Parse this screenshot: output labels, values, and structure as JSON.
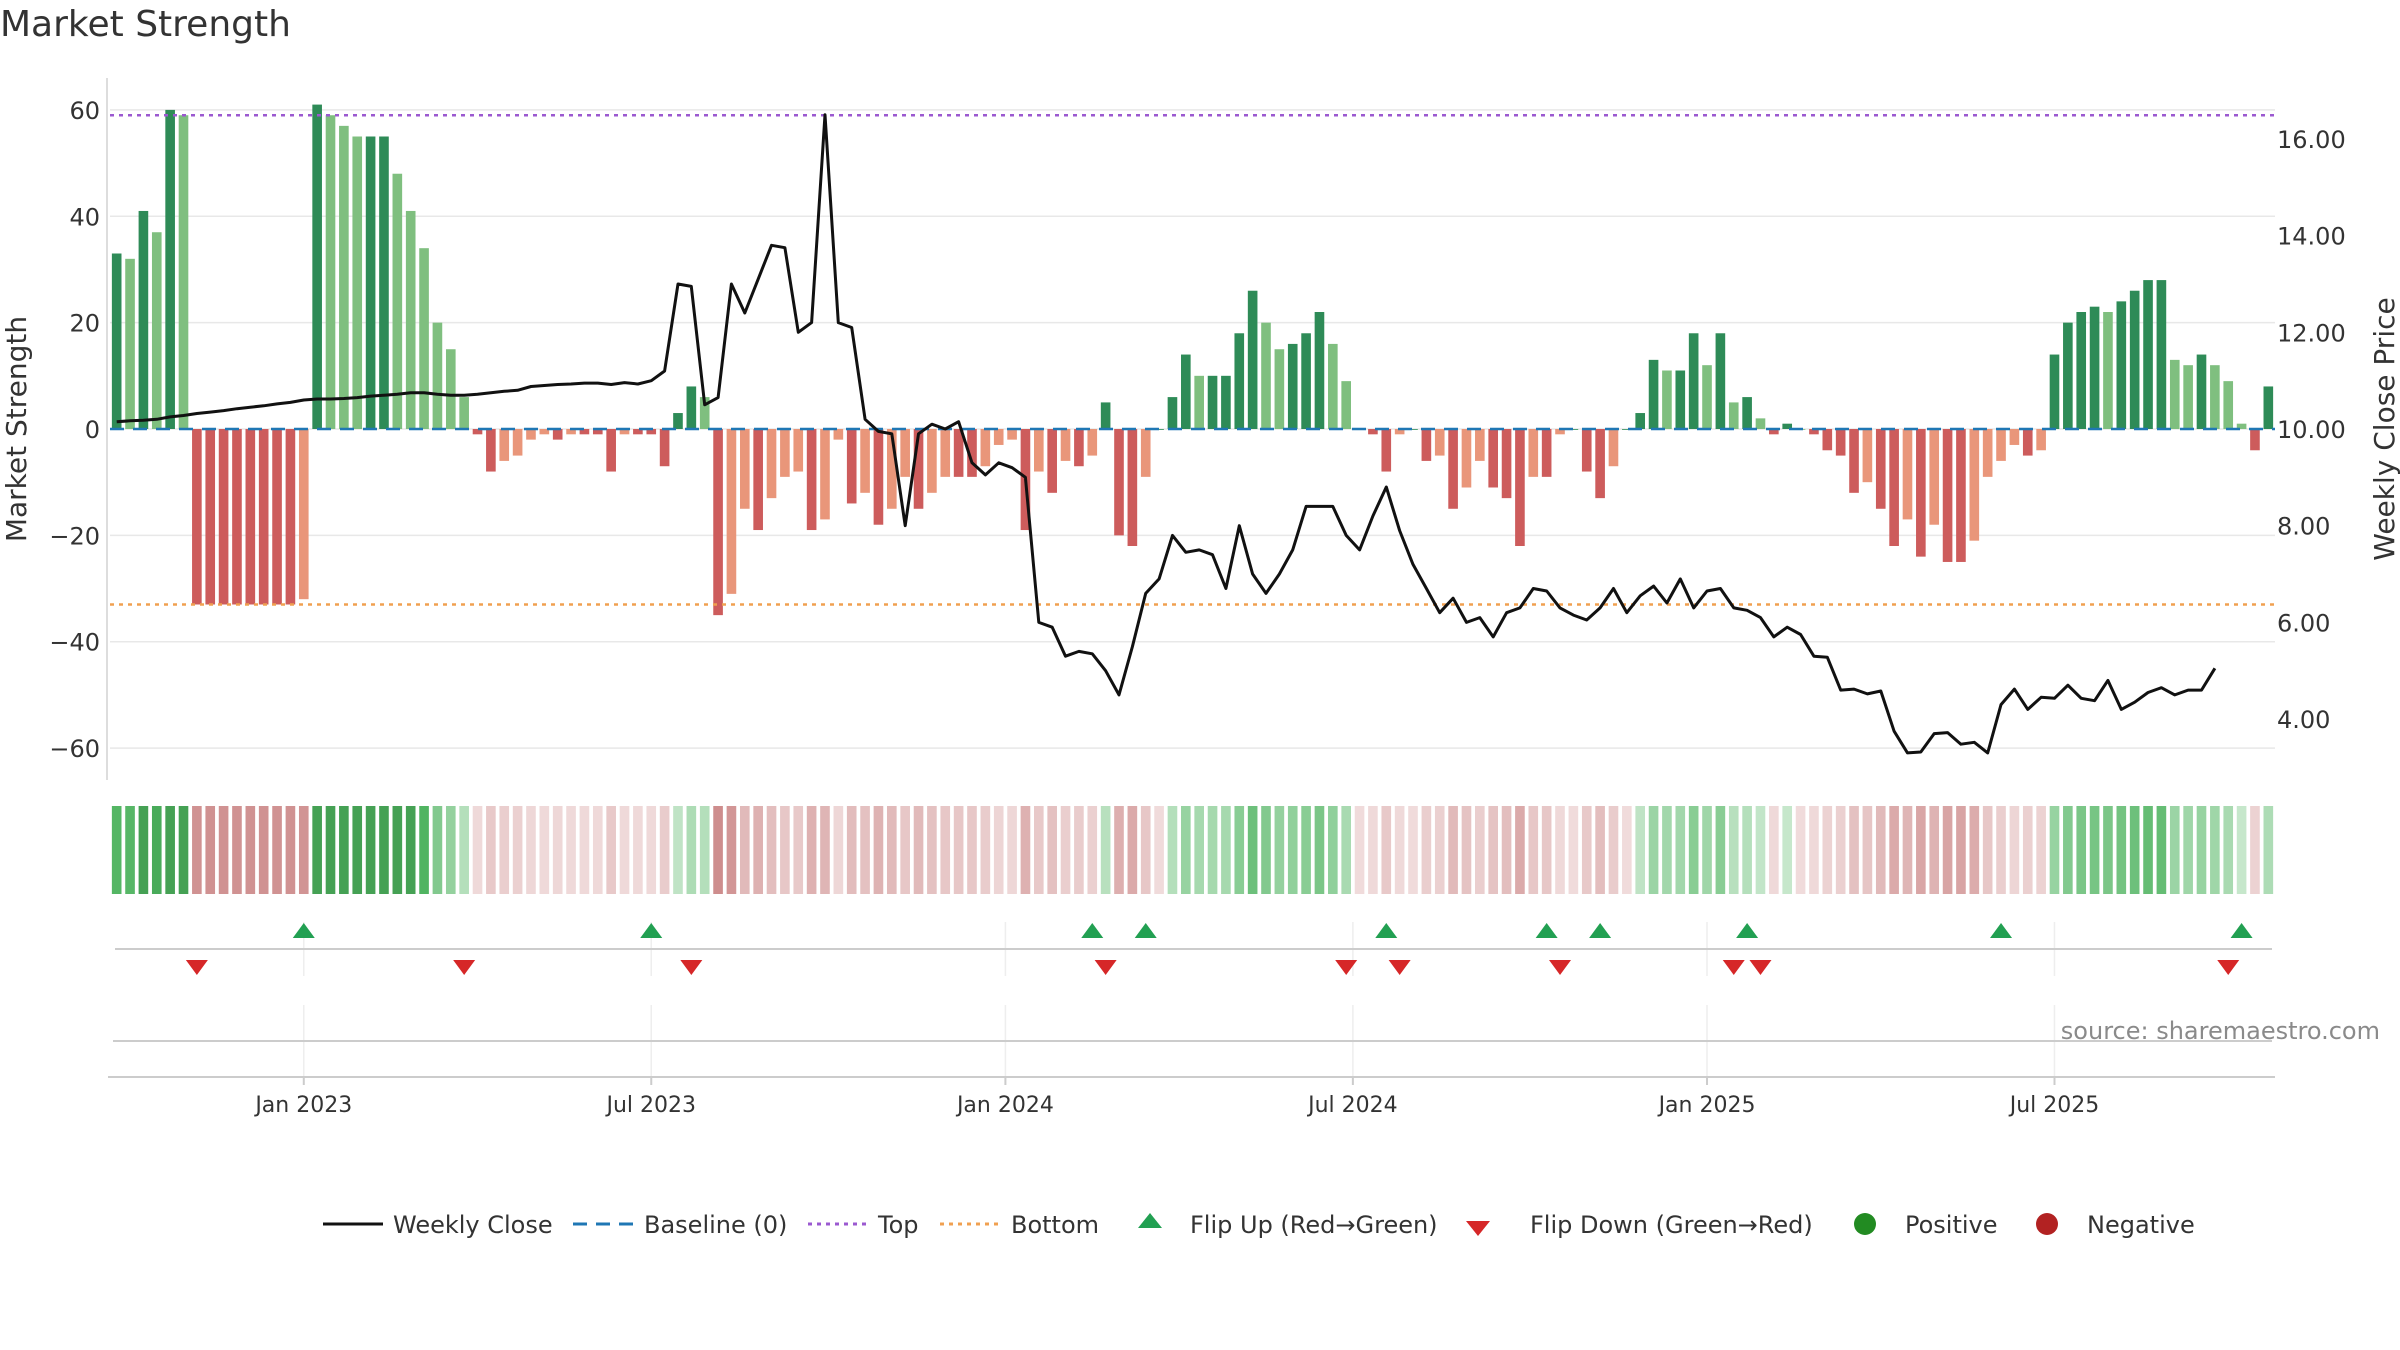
{
  "colors": {
    "pos_dark": "#2e8b57",
    "pos_light": "#7fbf7f",
    "neg_dark": "#cd5c5c",
    "neg_light": "#e9967a",
    "line": "#111111",
    "baseline": "#1f77b4",
    "top": "#9b59d0",
    "bottom": "#f0a050",
    "flip_up": "#22a052",
    "flip_down": "#d62728",
    "positive": "#228b22",
    "negative": "#b22222",
    "grid": "#e8e8e8"
  },
  "chart_data": {
    "type": "bar",
    "title": "Market Strength",
    "ylabel_left": "Market Strength",
    "ylabel_right": "Weekly Close Price",
    "left_ylim": [
      -66,
      66
    ],
    "left_ticks": [
      60,
      40,
      20,
      0,
      -20,
      -40,
      -60
    ],
    "left_tick_labels": [
      "60",
      "40",
      "20",
      "0",
      "−20",
      "−40",
      "−60"
    ],
    "right_ylim": [
      2.74,
      17.26
    ],
    "right_ticks": [
      16,
      14,
      12,
      10,
      8,
      6,
      4
    ],
    "right_tick_labels": [
      "16.00",
      "14.00",
      "12.00",
      "10.00",
      "8.00",
      "6.00",
      "4.00"
    ],
    "top_line": 59,
    "bottom_line": -33,
    "x_start_week_index": 0,
    "x_dates": [
      "2022-09-26"
    ],
    "x_tick_weeks": [
      14.5,
      40.5,
      67,
      93,
      119.5,
      145.5
    ],
    "x_tick_labels": [
      "Jan 2023",
      "Jul 2023",
      "Jan 2024",
      "Jul 2024",
      "Jan 2025",
      "Jul 2025"
    ],
    "strength": [
      33,
      32,
      41,
      37,
      60,
      59,
      -33,
      -33,
      -33,
      -33,
      -33,
      -33,
      -33,
      -33,
      -32,
      61,
      59,
      57,
      55,
      55,
      55,
      48,
      41,
      34,
      20,
      15,
      6,
      -1,
      -8,
      -6,
      -5,
      -2,
      -1,
      -2,
      -1,
      -1,
      -1,
      -8,
      -1,
      -1,
      -1,
      -7,
      3,
      8,
      6,
      -35,
      -31,
      -15,
      -19,
      -13,
      -9,
      -8,
      -19,
      -17,
      -2,
      -14,
      -12,
      -18,
      -15,
      -9,
      -15,
      -12,
      -9,
      -9,
      -9,
      -7,
      -3,
      -2,
      -19,
      -8,
      -12,
      -6,
      -7,
      -5,
      5,
      -20,
      -22,
      -9,
      0,
      6,
      14,
      10,
      10,
      10,
      18,
      26,
      20,
      15,
      16,
      18,
      22,
      16,
      9,
      0,
      -1,
      -8,
      -1,
      0,
      -6,
      -5,
      -15,
      -11,
      -6,
      -11,
      -13,
      -22,
      -9,
      -9,
      -1,
      0,
      -8,
      -13,
      -7,
      0,
      3,
      13,
      11,
      11,
      18,
      12,
      18,
      5,
      6,
      2,
      -1,
      1,
      0,
      -1,
      -4,
      -5,
      -12,
      -10,
      -15,
      -22,
      -17,
      -24,
      -18,
      -25,
      -25,
      -21,
      -9,
      -6,
      -3,
      -5,
      -4,
      14,
      20,
      22,
      23,
      22,
      24,
      26,
      28,
      28,
      13,
      12,
      14,
      12,
      9,
      1,
      -4,
      8
    ],
    "close": [
      10.15,
      10.17,
      10.18,
      10.2,
      10.25,
      10.28,
      10.32,
      10.35,
      10.38,
      10.42,
      10.45,
      10.48,
      10.52,
      10.55,
      10.6,
      10.62,
      10.62,
      10.63,
      10.65,
      10.68,
      10.7,
      10.72,
      10.75,
      10.75,
      10.72,
      10.7,
      10.7,
      10.72,
      10.75,
      10.78,
      10.8,
      10.88,
      10.9,
      10.92,
      10.93,
      10.95,
      10.95,
      10.92,
      10.96,
      10.93,
      11.0,
      11.2,
      13.0,
      12.95,
      10.5,
      10.65,
      13.0,
      12.4,
      13.1,
      13.8,
      13.75,
      12.0,
      12.2,
      16.5,
      12.2,
      12.1,
      10.2,
      9.95,
      9.9,
      8.0,
      9.9,
      10.1,
      10.0,
      10.15,
      9.3,
      9.05,
      9.3,
      9.2,
      9.0,
      6.0,
      5.9,
      5.3,
      5.4,
      5.35,
      5.0,
      4.5,
      5.5,
      6.6,
      6.9,
      7.8,
      7.45,
      7.5,
      7.4,
      6.7,
      8.0,
      7.0,
      6.6,
      7.0,
      7.5,
      8.4,
      8.4,
      8.4,
      7.8,
      7.5,
      8.2,
      8.8,
      7.9,
      7.2,
      6.7,
      6.2,
      6.5,
      6.0,
      6.1,
      5.7,
      6.2,
      6.3,
      6.7,
      6.65,
      6.3,
      6.15,
      6.05,
      6.3,
      6.7,
      6.2,
      6.55,
      6.75,
      6.4,
      6.9,
      6.3,
      6.65,
      6.7,
      6.3,
      6.25,
      6.1,
      5.7,
      5.9,
      5.75,
      5.3,
      5.28,
      4.6,
      4.62,
      4.52,
      4.58,
      3.75,
      3.3,
      3.32,
      3.7,
      3.72,
      3.48,
      3.52,
      3.3,
      4.3,
      4.62,
      4.2,
      4.45,
      4.43,
      4.7,
      4.43,
      4.38,
      4.8,
      4.2,
      4.35,
      4.55,
      4.65,
      4.5,
      4.6,
      4.6,
      5.05
    ],
    "flip_up_weeks": [
      14,
      40,
      73,
      77,
      95,
      107,
      111,
      122,
      141,
      159
    ],
    "flip_down_weeks": [
      6,
      26,
      43,
      74,
      92,
      96,
      108,
      121,
      123,
      158
    ]
  },
  "annotations": {
    "source": "source: sharemaestro.com"
  },
  "legend": {
    "weekly_close": "Weekly Close",
    "baseline": "Baseline (0)",
    "top": "Top",
    "bottom": "Bottom",
    "flip_up": "Flip Up (Red→Green)",
    "flip_down": "Flip Down (Green→Red)",
    "positive": "Positive",
    "negative": "Negative"
  }
}
